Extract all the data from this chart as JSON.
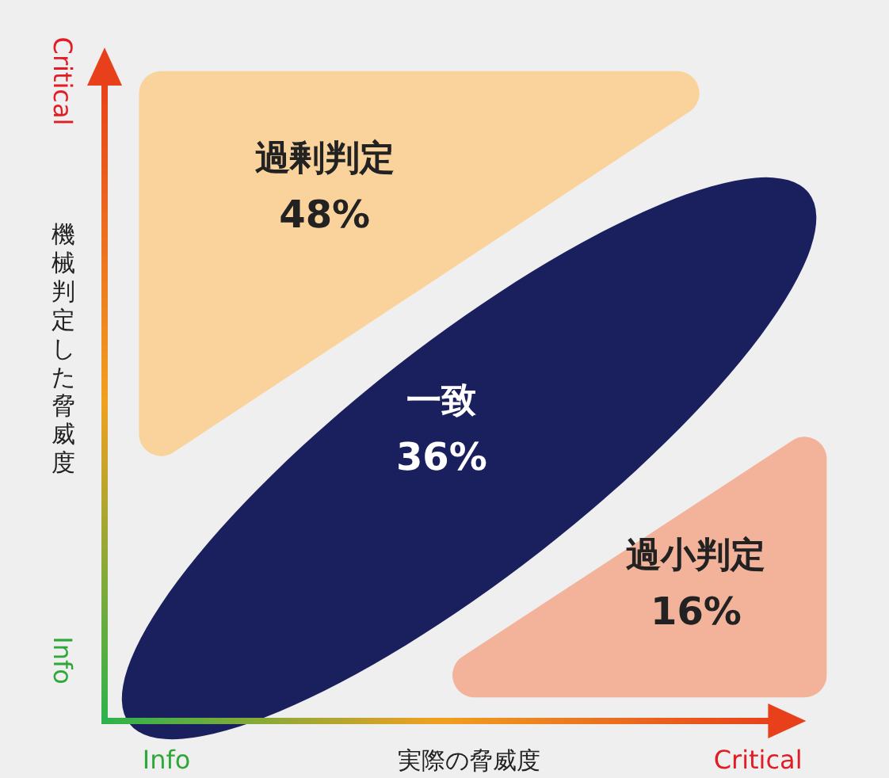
{
  "chart_data": {
    "type": "other",
    "xlabel": "実際の脅威度",
    "ylabel": "機械判定した脅威度",
    "categories": [
      "過剰判定",
      "一致",
      "過小判定"
    ],
    "values": [
      48,
      36,
      16
    ],
    "value_labels": [
      "48%",
      "36%",
      "16%"
    ],
    "colors": [
      "#fad39c",
      "#1a1f5e",
      "#f2b39a"
    ],
    "annotations": [
      "Info",
      "Critical",
      "Info",
      "Critical"
    ]
  }
}
